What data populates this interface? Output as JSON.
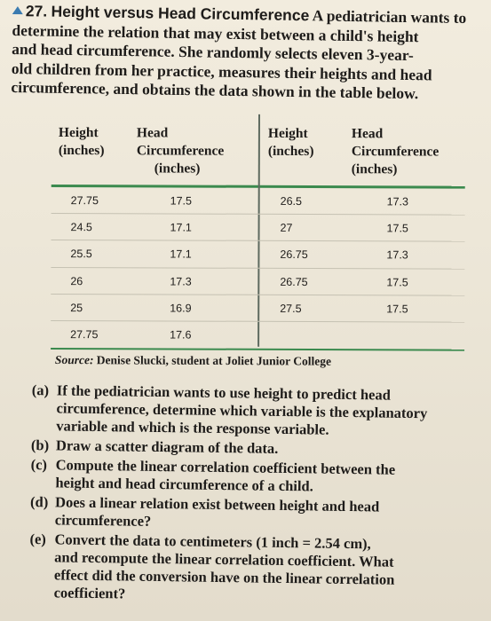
{
  "exercise": {
    "number": "27.",
    "title": "Height versus Head Circumference",
    "intro_lines": [
      "A pediatrician wants to",
      "determine the relation that may exist between a child's height",
      "and head circumference. She randomly selects eleven 3-year-",
      "old children from her practice, measures their heights and head",
      "circumference, and obtains the data shown in the table below."
    ]
  },
  "table": {
    "headers": [
      [
        "Height",
        "(inches)"
      ],
      [
        "Head",
        "Circumference",
        "(inches)"
      ],
      [
        "Height",
        "(inches)"
      ],
      [
        "Head",
        "Circumference",
        "(inches)"
      ]
    ],
    "rows": [
      [
        "27.75",
        "17.5",
        "26.5",
        "17.3"
      ],
      [
        "24.5",
        "17.1",
        "27",
        "17.5"
      ],
      [
        "25.5",
        "17.1",
        "26.75",
        "17.3"
      ],
      [
        "26",
        "17.3",
        "26.75",
        "17.5"
      ],
      [
        "25",
        "16.9",
        "27.5",
        "17.5"
      ],
      [
        "27.75",
        "17.6",
        "",
        ""
      ]
    ],
    "source_label": "Source:",
    "source_text": "Denise Slucki, student at Joliet Junior College"
  },
  "questions": [
    {
      "label": "(a)",
      "lines": [
        "If the pediatrician wants to use height to predict head",
        "circumference, determine which variable is the explanatory",
        "variable and which is the response variable."
      ]
    },
    {
      "label": "(b)",
      "lines": [
        "Draw a scatter diagram of the data."
      ]
    },
    {
      "label": "(c)",
      "lines": [
        "Compute the linear correlation coefficient between the",
        "height and head circumference of a child."
      ]
    },
    {
      "label": "(d)",
      "lines": [
        "Does a linear relation exist between height and head",
        "circumference?"
      ]
    },
    {
      "label": "(e)",
      "lines": [
        "Convert the data to centimeters (1 inch = 2.54 cm),",
        "and recompute the linear correlation coefficient. What",
        "effect did the conversion have on the linear correlation",
        "coefficient?"
      ]
    }
  ]
}
